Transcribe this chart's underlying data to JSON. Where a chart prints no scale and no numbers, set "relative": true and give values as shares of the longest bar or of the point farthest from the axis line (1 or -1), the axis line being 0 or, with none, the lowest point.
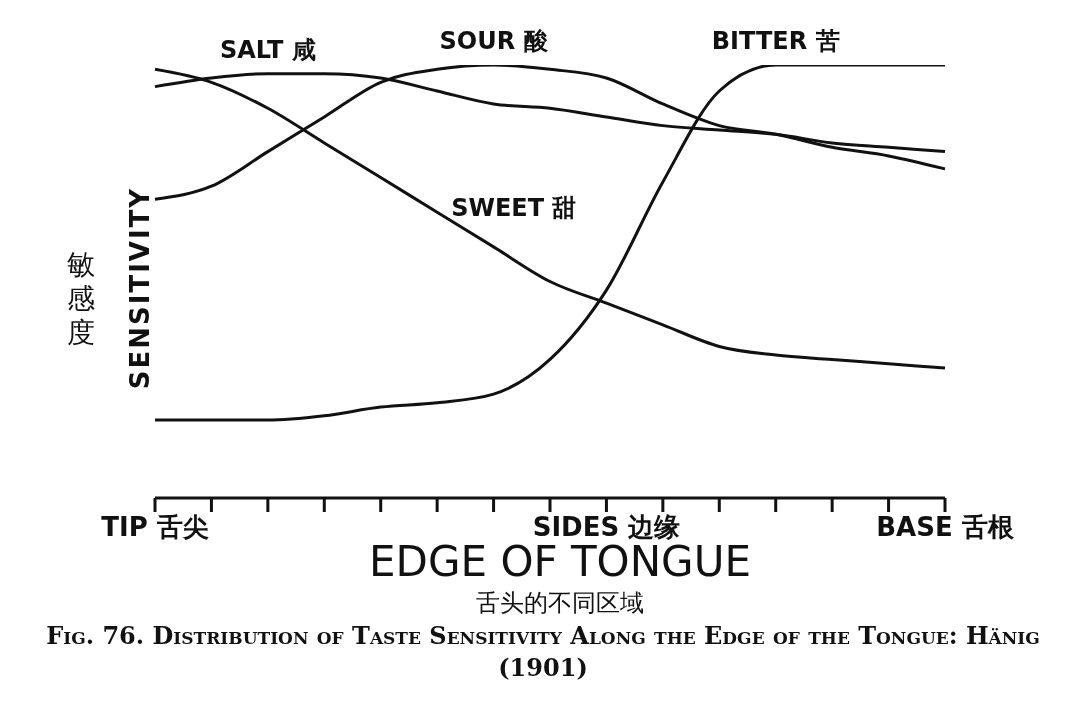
{
  "chart_data": {
    "type": "line",
    "relative": true,
    "title": "Fig. 76. Distribution of Taste Sensitivity Along the Edge of the Tongue: Hänig (1901)",
    "xlabel": "EDGE OF TONGUE",
    "ylabel": "SENSITIVITY",
    "annotations": [
      "舌头的不同区域",
      "敏感度"
    ],
    "categories": [
      "TIP 舌尖",
      null,
      null,
      null,
      null,
      null,
      null,
      null,
      "SIDES 边缘",
      null,
      null,
      null,
      null,
      null,
      "BASE 舌根"
    ],
    "legend": false,
    "grid": false,
    "marker": "none",
    "line_style": "solid",
    "series": [
      {
        "name": "SALT 咸",
        "color": "#111111",
        "values": [
          0.95,
          0.97,
          0.98,
          0.98,
          0.97,
          0.94,
          0.91,
          0.9,
          0.88,
          0.86,
          0.85,
          0.84,
          0.82,
          0.81,
          0.8
        ]
      },
      {
        "name": "SOUR 酸",
        "color": "#111111",
        "values": [
          0.69,
          0.72,
          0.8,
          0.88,
          0.96,
          0.99,
          1.0,
          0.99,
          0.97,
          0.91,
          0.86,
          0.84,
          0.81,
          0.79,
          0.76
        ]
      },
      {
        "name": "SWEET 甜",
        "color": "#111111",
        "values": [
          0.99,
          0.96,
          0.9,
          0.82,
          0.74,
          0.66,
          0.58,
          0.5,
          0.45,
          0.4,
          0.35,
          0.33,
          0.32,
          0.31,
          0.3
        ]
      },
      {
        "name": "BITTER 苦",
        "color": "#111111",
        "values": [
          0.18,
          0.18,
          0.18,
          0.19,
          0.21,
          0.22,
          0.24,
          0.32,
          0.48,
          0.73,
          0.94,
          1.0,
          1.0,
          1.0,
          1.0
        ]
      }
    ]
  }
}
